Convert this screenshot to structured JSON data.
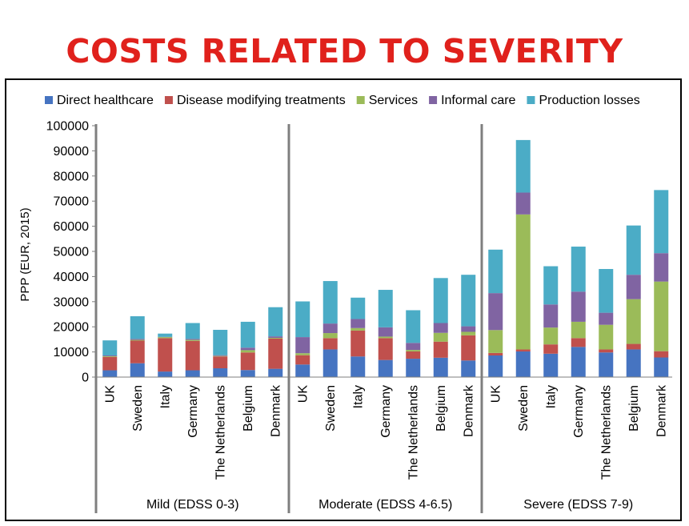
{
  "page_title": "COSTS RELATED TO SEVERITY",
  "colors": {
    "title": "#e0211c",
    "Direct healthcare": "#4674c1",
    "Disease modifying treatments": "#c0504d",
    "Services": "#9bbb59",
    "Informal care": "#8064a2",
    "Production losses": "#4bacc6"
  },
  "chart_data": {
    "type": "bar",
    "stacked": true,
    "title": "",
    "xlabel": "",
    "ylabel": "PPP (EUR, 2015)",
    "ylim": [
      0,
      100000
    ],
    "yticks": [
      0,
      10000,
      20000,
      30000,
      40000,
      50000,
      60000,
      70000,
      80000,
      90000,
      100000
    ],
    "grid": false,
    "legend_position": "top",
    "groups": [
      {
        "name": "Mild (EDSS 0-3)",
        "categories": [
          "UK",
          "Sweden",
          "Italy",
          "Germany",
          "The Netherlands",
          "Belgium",
          "Denmark"
        ]
      },
      {
        "name": "Moderate (EDSS 4-6.5)",
        "categories": [
          "UK",
          "Sweden",
          "Italy",
          "Germany",
          "The Netherlands",
          "Belgium",
          "Denmark"
        ]
      },
      {
        "name": "Severe (EDSS 7-9)",
        "categories": [
          "UK",
          "Sweden",
          "Italy",
          "Germany",
          "The Netherlands",
          "Belgium",
          "Denmark"
        ]
      }
    ],
    "series": [
      {
        "name": "Direct healthcare",
        "values": [
          2700,
          5500,
          2200,
          2700,
          3500,
          2800,
          3300,
          5000,
          11000,
          8200,
          6800,
          7300,
          7700,
          6600,
          8600,
          10200,
          9300,
          12000,
          9800,
          11000,
          7800
        ]
      },
      {
        "name": "Disease modifying treatments",
        "values": [
          5300,
          9000,
          13300,
          11700,
          4700,
          7000,
          12000,
          3700,
          4500,
          10300,
          8700,
          2900,
          6400,
          10000,
          1000,
          800,
          3700,
          3500,
          1200,
          2200,
          2500
        ]
      },
      {
        "name": "Services",
        "values": [
          300,
          300,
          400,
          400,
          200,
          900,
          300,
          800,
          2000,
          1000,
          600,
          600,
          3500,
          1400,
          9100,
          53700,
          6700,
          6500,
          9800,
          17800,
          27700
        ]
      },
      {
        "name": "Informal care",
        "values": [
          300,
          400,
          100,
          400,
          300,
          1000,
          600,
          6400,
          3800,
          3600,
          3700,
          2800,
          3900,
          2200,
          14700,
          8700,
          9200,
          12000,
          4800,
          9700,
          11300
        ]
      },
      {
        "name": "Production losses",
        "values": [
          6000,
          9000,
          1300,
          6300,
          10100,
          10300,
          11600,
          14200,
          16900,
          8500,
          14900,
          13000,
          17900,
          20500,
          17300,
          20900,
          15200,
          17900,
          17400,
          19600,
          25100
        ]
      }
    ]
  }
}
